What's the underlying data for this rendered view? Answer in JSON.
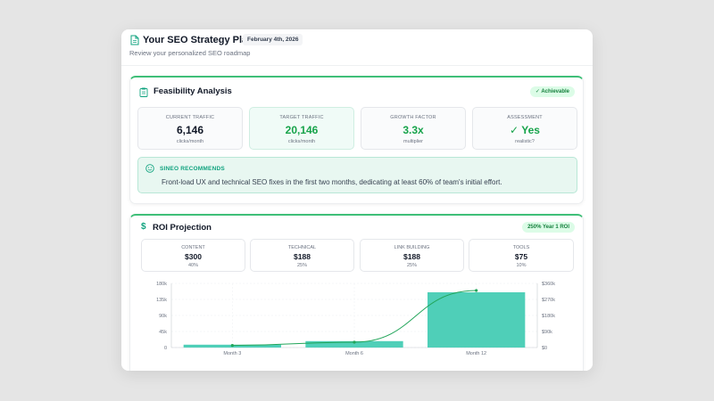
{
  "header": {
    "title": "Your SEO Strategy Plan",
    "date": "February 4th, 2026",
    "subtitle": "Review your personalized SEO roadmap",
    "icon": "document-icon"
  },
  "feasibility": {
    "title": "Feasibility Analysis",
    "badge": "✓ Achievable",
    "icon": "clipboard-icon",
    "metrics": [
      {
        "label": "CURRENT TRAFFIC",
        "value": "6,146",
        "sub": "clicks/month"
      },
      {
        "label": "TARGET TRAFFIC",
        "value": "20,146",
        "sub": "clicks/month"
      },
      {
        "label": "GROWTH FACTOR",
        "value": "3.3x",
        "sub": "multiplier"
      },
      {
        "label": "ASSESSMENT",
        "value": "Yes",
        "sub": "realistic?"
      }
    ],
    "recommendation": {
      "title": "SINEO RECOMMENDS",
      "text": "Front-load UX and technical SEO fixes in the first two months, dedicating at least 60% of team's initial effort.",
      "icon": "smiley-icon"
    },
    "colors": {
      "accent": "#3fbf78",
      "green_text": "#16a34a",
      "highlight": "#4fcfb8"
    }
  },
  "roi": {
    "title": "ROI Projection",
    "badge": "250% Year 1 ROI",
    "icon": "dollar-icon",
    "items": [
      {
        "label": "CONTENT",
        "value": "$300",
        "pct": "40%"
      },
      {
        "label": "TECHNICAL",
        "value": "$188",
        "pct": "25%"
      },
      {
        "label": "LINK BUILDING",
        "value": "$188",
        "pct": "25%"
      },
      {
        "label": "TOOLS",
        "value": "$75",
        "pct": "10%"
      }
    ]
  },
  "chart_data": {
    "type": "bar",
    "categories": [
      "Month 3",
      "Month 6",
      "Month 12"
    ],
    "series": [
      {
        "type": "bar",
        "axis": "left",
        "color": "#4fcfb8",
        "values": [
          8000,
          18000,
          155000
        ]
      },
      {
        "type": "line",
        "axis": "right",
        "color": "#22a55a",
        "values": [
          12000,
          30000,
          320000
        ]
      }
    ],
    "left_ticks": [
      "180k",
      "135k",
      "90k",
      "45k",
      "0"
    ],
    "right_ticks": [
      "$360k",
      "$270k",
      "$180k",
      "$90k",
      "$0"
    ],
    "ylim": [
      0,
      180000
    ],
    "y2lim": [
      0,
      360000
    ],
    "grid": true
  }
}
